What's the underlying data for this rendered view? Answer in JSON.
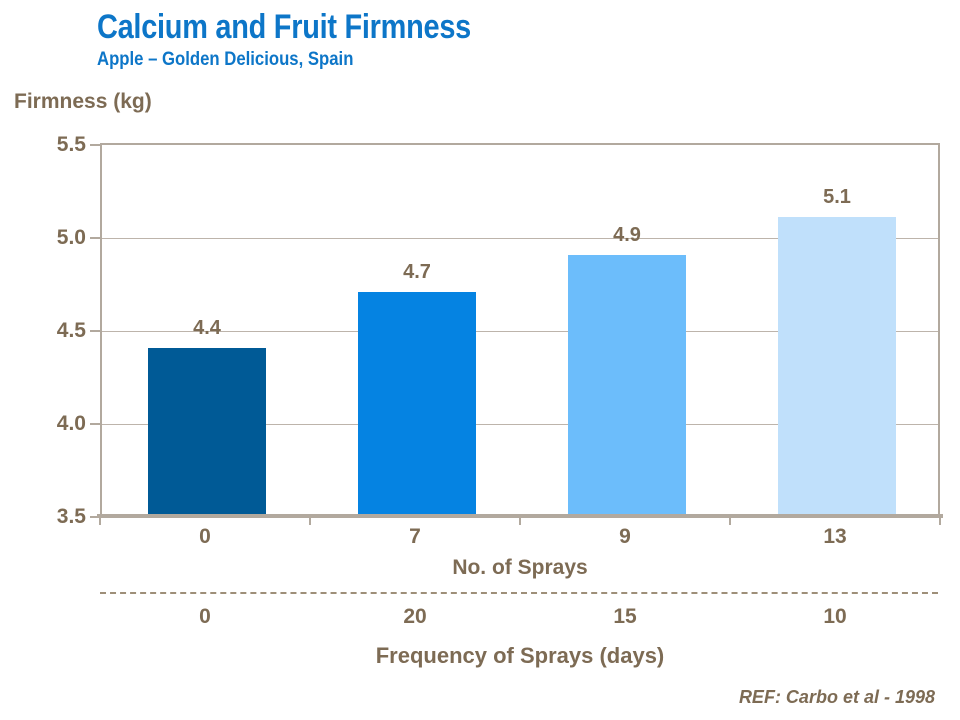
{
  "chart_data": {
    "type": "bar",
    "title": "Calcium and Fruit Firmness",
    "subtitle": "Apple – Golden Delicious, Spain",
    "ylabel": "Firmness (kg)",
    "xlabel": "No. of Sprays",
    "categories": [
      "0",
      "7",
      "9",
      "13"
    ],
    "values": [
      4.4,
      4.7,
      4.9,
      5.1
    ],
    "data_labels": [
      "4.4",
      "4.7",
      "4.9",
      "5.1"
    ],
    "secondary_xlabel": "Frequency of Sprays (days)",
    "secondary_categories": [
      "0",
      "20",
      "15",
      "10"
    ],
    "ylim": [
      3.5,
      5.5
    ],
    "yticks": [
      "5.5",
      "5.0",
      "4.5",
      "4.0",
      "3.5"
    ],
    "grid": "horizontal",
    "legend_position": "none",
    "reference": "REF: Carbo et al - 1998",
    "colors": {
      "bars": [
        "#005a96",
        "#0583e2",
        "#6cbdfb",
        "#c0e0fb"
      ],
      "title": "#0d76c8",
      "text": "#7d6b54",
      "axis": "#b2a99e",
      "grid": "#bdb4ab",
      "dash": "#9e8f79"
    }
  }
}
